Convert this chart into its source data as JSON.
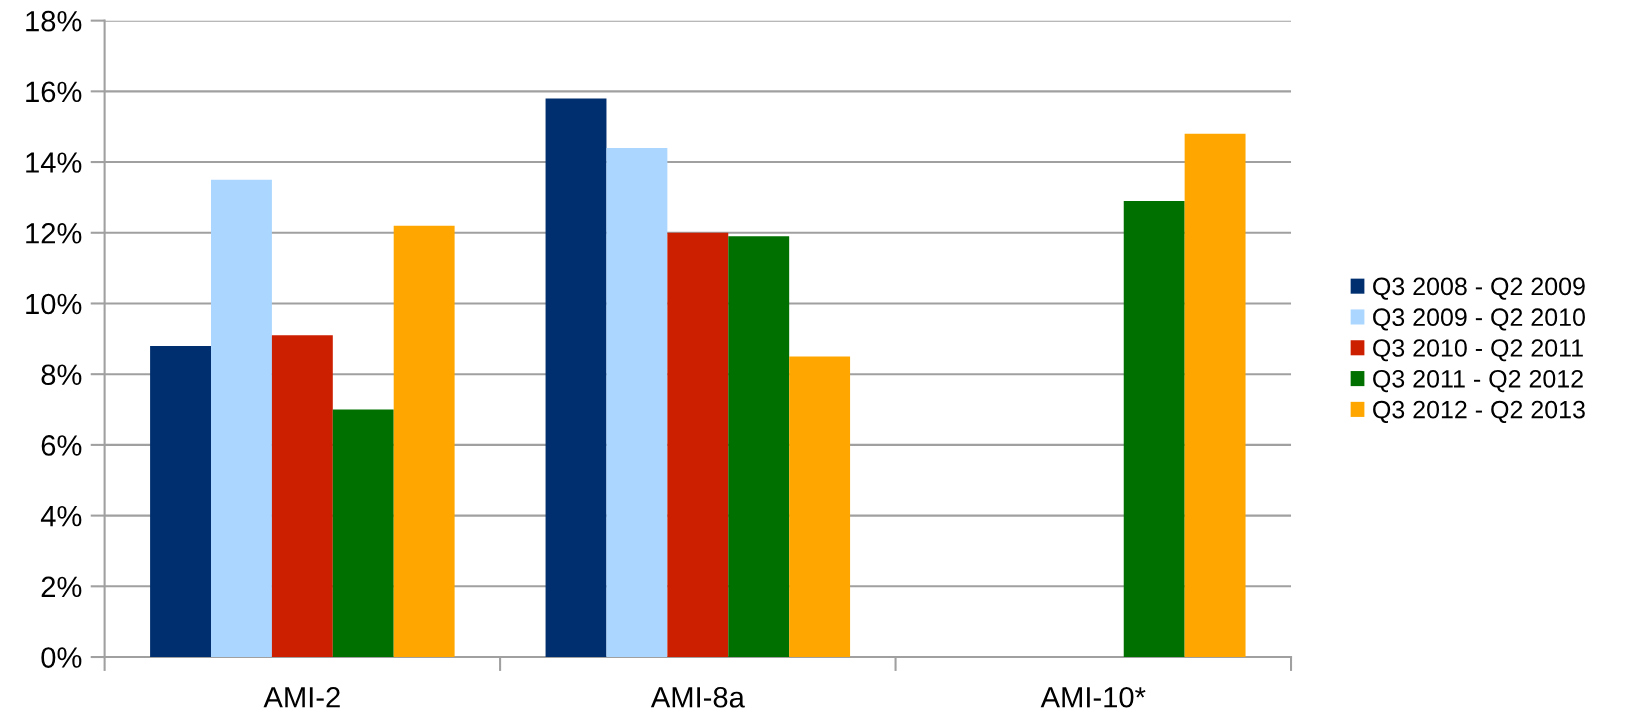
{
  "chart_data": {
    "type": "bar",
    "categories": [
      "AMI-2",
      "AMI-8a",
      "AMI-10*"
    ],
    "series": [
      {
        "name": "Q3 2008 - Q2 2009",
        "color": "#002f6f",
        "values": [
          8.8,
          15.8,
          null
        ]
      },
      {
        "name": "Q3 2009 - Q2 2010",
        "color": "#aad6ff",
        "values": [
          13.5,
          14.4,
          null
        ]
      },
      {
        "name": "Q3 2010 - Q2 2011",
        "color": "#cc1f00",
        "values": [
          9.1,
          12.0,
          null
        ]
      },
      {
        "name": "Q3 2011 - Q2 2012",
        "color": "#007000",
        "values": [
          7.0,
          11.9,
          12.9
        ]
      },
      {
        "name": "Q3 2012 - Q2 2013",
        "color": "#ffa600",
        "values": [
          12.2,
          8.5,
          14.8
        ]
      }
    ],
    "ylim": [
      0,
      18
    ],
    "yticks": [
      {
        "value": 0,
        "label": "0%"
      },
      {
        "value": 2,
        "label": "2%"
      },
      {
        "value": 4,
        "label": "4%"
      },
      {
        "value": 6,
        "label": "6%"
      },
      {
        "value": 8,
        "label": "8%"
      },
      {
        "value": 10,
        "label": "10%"
      },
      {
        "value": 12,
        "label": "12%"
      },
      {
        "value": 14,
        "label": "14%"
      },
      {
        "value": 16,
        "label": "16%"
      },
      {
        "value": 18,
        "label": "18%"
      }
    ],
    "grid": "y",
    "legend": "right"
  }
}
